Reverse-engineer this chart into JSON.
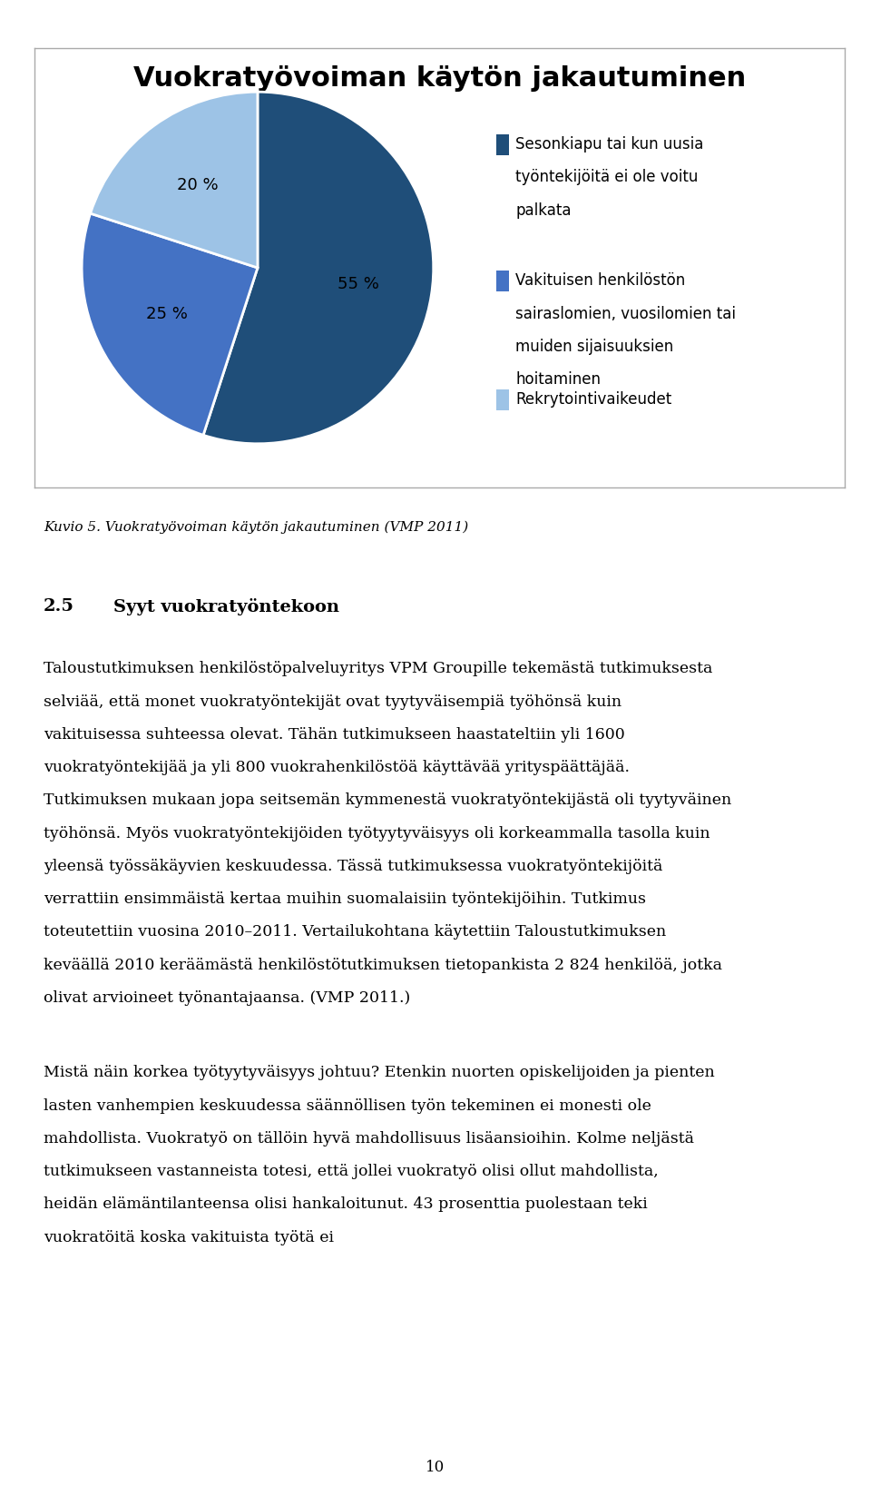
{
  "title": "Vuokratyövoiman käytön jakautuminen",
  "pie_values": [
    55,
    25,
    20
  ],
  "pie_colors": [
    "#1F4E79",
    "#4472C4",
    "#9DC3E6"
  ],
  "pie_labels": [
    "55 %",
    "25 %",
    "20 %"
  ],
  "legend_labels": [
    "Sesonkiapu tai kun uusia\ntyöntekijöitä ei ole voitu\npalkata",
    "Vakituisen henkilöstön\nsairaslomien, vuosilomien tai\nmuiden sijaisuuksien\nhoitaminen",
    "Rekrytointivaikeudet"
  ],
  "legend_colors": [
    "#1F4E79",
    "#4472C4",
    "#9DC3E6"
  ],
  "caption": "Kuvio 5. Vuokratyövoiman käytön jakautuminen (VMP 2011)",
  "section_heading_num": "2.5",
  "section_heading_text": "Syyt vuokratyöntekoon",
  "body_text": "Taloustutkimuksen henkilöstöpalveluyritys VPM Groupille tekemästä tutkimuksesta selviää, että monet vuokratyöntekijät ovat tyytyväisempiä työhönsä kuin vakituisessa suhteessa olevat. Tähän tutkimukseen haastateltiin yli 1600 vuokratyöntekijää ja yli 800 vuokrahenkilöstöä käyttävää yrityspäättäjää. Tutkimuksen mukaan jopa seitsemän kymmenestä vuokratyöntekijästä oli tyytyväinen työhönsä. Myös vuokratyöntekijöiden työtyytyväisyys oli korkeammalla tasolla kuin yleensä työssäkäyvien keskuudessa. Tässä tutkimuksessa vuokratyöntekijöitä verrattiin ensimmäistä kertaa muihin suomalaisiin työntekijöihin. Tutkimus toteutettiin vuosina 2010–2011. Vertailukohtana käytettiin Taloustutkimuksen keväällä 2010 keräämästä henkilöstötutkimuksen tietopankista 2 824 henkilöä, jotka olivat arvioineet työnantajaansa. (VMP 2011.)",
  "body_text2": "Mistä näin korkea työtyytyväisyys johtuu? Etenkin nuorten opiskelijoiden ja pienten lasten vanhempien keskuudessa säännöllisen työn tekeminen ei monesti ole mahdollista. Vuokratyö on tällöin hyvä mahdollisuus lisäansioihin. Kolme neljästä tutkimukseen vastanneista totesi, että jollei vuokratyö olisi ollut mahdollista, heidän elämäntilanteensa olisi hankaloitunut. 43 prosenttia puolestaan teki vuokratöitä koska vakituista työtä ei",
  "page_number": "10",
  "background_color": "#FFFFFF",
  "border_color": "#AAAAAA",
  "title_fontsize": 22,
  "label_fontsize": 13,
  "legend_fontsize": 12,
  "caption_fontsize": 11,
  "body_fontsize": 12.5,
  "heading_fontsize": 14
}
